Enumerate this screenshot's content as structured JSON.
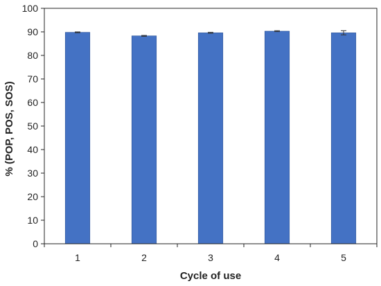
{
  "chart_data": {
    "type": "bar",
    "title": "",
    "xlabel": "Cycle of use",
    "ylabel": "% (POP, POS, SOS)",
    "categories": [
      "1",
      "2",
      "3",
      "4",
      "5"
    ],
    "values": [
      89.8,
      88.3,
      89.6,
      90.3,
      89.6
    ],
    "errors": [
      0.2,
      0.2,
      0.2,
      0.2,
      0.9
    ],
    "ylim": [
      0,
      100
    ],
    "yticks": [
      "0",
      "10",
      "20",
      "30",
      "40",
      "50",
      "60",
      "70",
      "80",
      "90",
      "100"
    ],
    "grid": false,
    "legend": "none",
    "colors": {
      "bar": "#4472C4",
      "bar_edge": "#2F5597",
      "axis": "#222222",
      "error": "#333333"
    }
  }
}
